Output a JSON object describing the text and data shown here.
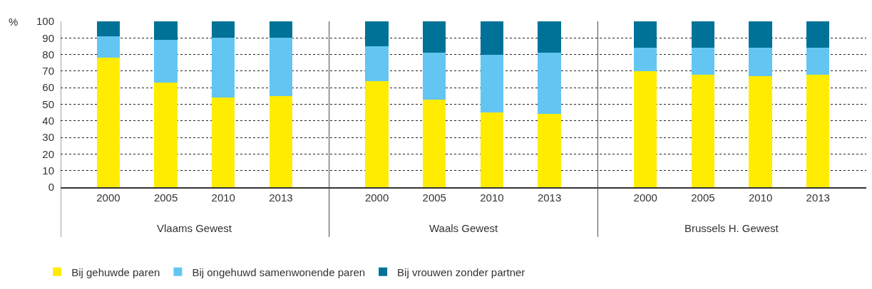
{
  "chart_data": {
    "type": "bar",
    "stacked": true,
    "ylabel": "%",
    "categories": [
      "2000",
      "2005",
      "2010",
      "2013",
      "2000",
      "2005",
      "2010",
      "2013",
      "2000",
      "2005",
      "2010",
      "2013"
    ],
    "annotations": [
      "Vlaams Gewest",
      "Waals Gewest",
      "Brussels H. Gewest"
    ],
    "series": [
      {
        "name": "Bij gehuwde paren",
        "color": "#ffec00",
        "values": [
          78,
          63,
          54,
          55,
          64,
          53,
          45,
          44,
          70,
          68,
          67,
          68
        ]
      },
      {
        "name": "Bij ongehuwd samenwonende paren",
        "color": "#63c6f2",
        "values": [
          13,
          26,
          36,
          35,
          21,
          28,
          35,
          37,
          14,
          16,
          17,
          16
        ]
      },
      {
        "name": "Bij vrouwen zonder partner",
        "color": "#007297",
        "values": [
          9,
          11,
          10,
          10,
          15,
          19,
          20,
          19,
          16,
          16,
          16,
          16
        ]
      }
    ],
    "ylim": [
      0,
      100
    ],
    "yticks": [
      0,
      10,
      20,
      30,
      40,
      50,
      60,
      70,
      80,
      90,
      100
    ],
    "grid": "y",
    "legend": "bottom"
  }
}
